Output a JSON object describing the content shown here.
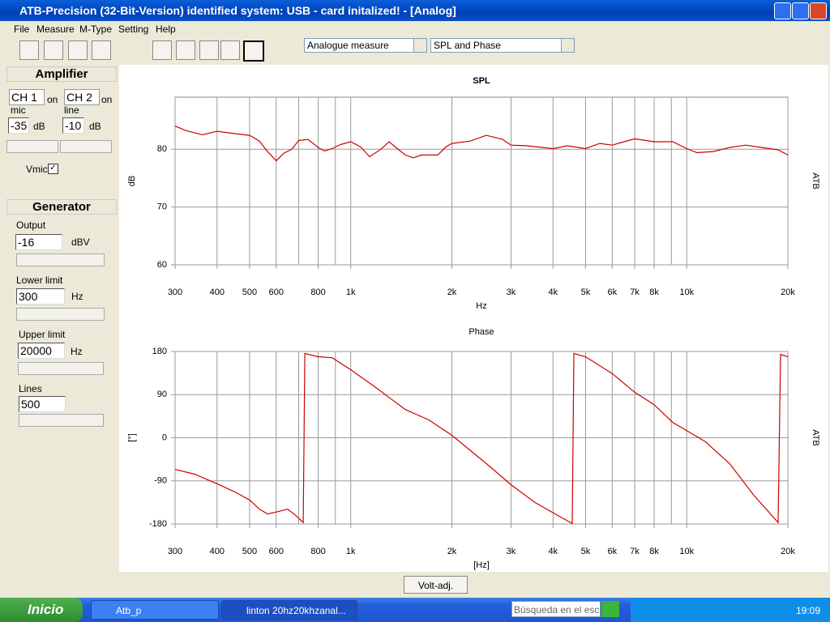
{
  "window": {
    "title": "ATB-Precision  (32-Bit-Version)  identified system: USB - card  initalized! - [Analog]"
  },
  "menu": [
    "File",
    "Measure",
    "M-Type",
    "Setting",
    "Help"
  ],
  "dropdowns": [
    "Analogue measure",
    "SPL and Phase"
  ],
  "panel": {
    "amplifier": {
      "title": "Amplifier",
      "ch1": "CH 1",
      "ch1_state": "on",
      "ch2": "CH 2",
      "ch2_state": "on",
      "mic_label": "mic",
      "line_label": "line",
      "mic_value": -35,
      "mic_unit": "dB",
      "line_value": -10,
      "line_unit": "dB",
      "vmic": "Vmic"
    },
    "generator": {
      "title": "Generator",
      "output_label": "Output",
      "output_value": -16,
      "output_unit": "dBV",
      "lower_label": "Lower limit",
      "lower_value": 300,
      "lower_unit": "Hz",
      "upper_label": "Upper limit",
      "upper_value": 20000,
      "upper_unit": "Hz",
      "lines_label": "Lines",
      "lines_value": 500
    }
  },
  "button": "Volt-adj.",
  "taskbar": {
    "start": "Inicio",
    "tasks": [
      "Atb_p",
      "linton 20hz20khzanal..."
    ],
    "search": "Búsqueda en el escri",
    "clock": "19:09"
  },
  "chart_data": [
    {
      "type": "line",
      "title": "SPL",
      "xlabel": "Hz",
      "ylabel": "dB",
      "right_label": "ATB",
      "log_x": true,
      "grid": true,
      "x": [
        300,
        324,
        362,
        400,
        452,
        500,
        535,
        565,
        600,
        632,
        668,
        700,
        746,
        800,
        834,
        881,
        932,
        1000,
        1070,
        1138,
        1230,
        1301,
        1375,
        1453,
        1536,
        1624,
        1815,
        1919,
        2000,
        2266,
        2532,
        2830,
        3000,
        3342,
        4000,
        4416,
        5000,
        5511,
        6000,
        6513,
        7000,
        8000,
        9087,
        10000,
        10737,
        11997,
        13413,
        14982,
        16740,
        18711,
        20000
      ],
      "series": [
        {
          "color": "#cc0000",
          "values": [
            84,
            83.2,
            82.5,
            83.1,
            82.7,
            82.4,
            81.4,
            79.6,
            78,
            79.3,
            80,
            81.5,
            81.7,
            80.3,
            79.7,
            80.1,
            80.8,
            81.3,
            80.4,
            78.7,
            80,
            81.3,
            80.1,
            79,
            78.5,
            79,
            79,
            80.4,
            81,
            81.4,
            82.4,
            81.7,
            80.7,
            80.6,
            80.1,
            80.6,
            80.1,
            81,
            80.7,
            81.3,
            81.8,
            81.3,
            81.3,
            80.1,
            79.4,
            79.6,
            80.3,
            80.7,
            80.3,
            79.9,
            79
          ]
        }
      ],
      "xlim": [
        300,
        20000
      ],
      "ylim": [
        60,
        89
      ],
      "xticks": [
        300,
        400,
        500,
        600,
        800,
        {
          "value": 1000,
          "label": "1k"
        },
        {
          "value": 2000,
          "label": "2k"
        },
        {
          "value": 3000,
          "label": "3k"
        },
        {
          "value": 4000,
          "label": "4k"
        },
        {
          "value": 5000,
          "label": "5k"
        },
        {
          "value": 6000,
          "label": "6k"
        },
        {
          "value": 7000,
          "label": "7k"
        },
        {
          "value": 8000,
          "label": "8k"
        },
        {
          "value": 10000,
          "label": "10k"
        },
        {
          "value": 20000,
          "label": "20k"
        }
      ],
      "minor_xticks": [
        700,
        900,
        9000
      ],
      "yticks": [
        60,
        70,
        80
      ]
    },
    {
      "type": "line",
      "title": "Phase",
      "xlabel": "[Hz]",
      "ylabel": "[°]",
      "right_label": "ATB",
      "log_x": true,
      "grid": true,
      "x": [
        300,
        343,
        400,
        452,
        500,
        535,
        565,
        600,
        649,
        686,
        722,
        730,
        800,
        881,
        1000,
        1160,
        1301,
        1453,
        1710,
        2000,
        2532,
        3000,
        3535,
        4176,
        4563,
        4614,
        5000,
        6000,
        7000,
        8000,
        9087,
        10000,
        11350,
        13413,
        15840,
        18711,
        19026,
        20000
      ],
      "series": [
        {
          "color": "#cc0000",
          "values": [
            -66,
            -76,
            -96,
            -113,
            -130,
            -149,
            -159,
            -155,
            -149,
            -162,
            -177,
            176,
            169,
            167,
            142,
            110,
            84,
            59,
            37,
            5,
            -54,
            -98,
            -135,
            -164,
            -179,
            176,
            169,
            134,
            95,
            69,
            32,
            15,
            -8,
            -54,
            -120,
            -177,
            174,
            169
          ]
        }
      ],
      "xlim": [
        300,
        20000
      ],
      "ylim": [
        -180,
        180
      ],
      "xticks": [
        300,
        400,
        500,
        600,
        800,
        {
          "value": 1000,
          "label": "1k"
        },
        {
          "value": 2000,
          "label": "2k"
        },
        {
          "value": 3000,
          "label": "3k"
        },
        {
          "value": 4000,
          "label": "4k"
        },
        {
          "value": 5000,
          "label": "5k"
        },
        {
          "value": 6000,
          "label": "6k"
        },
        {
          "value": 7000,
          "label": "7k"
        },
        {
          "value": 8000,
          "label": "8k"
        },
        {
          "value": 10000,
          "label": "10k"
        },
        {
          "value": 20000,
          "label": "20k"
        }
      ],
      "minor_xticks": [
        700,
        900,
        9000
      ],
      "yticks": [
        -180,
        -90,
        0,
        90,
        180
      ]
    }
  ]
}
